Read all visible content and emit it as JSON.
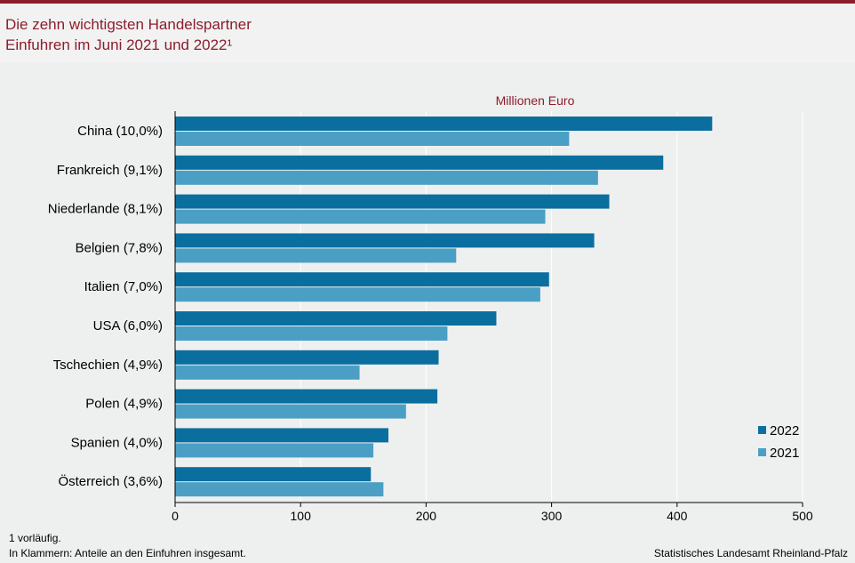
{
  "header": {
    "title_line1": "Die zehn wichtigsten Handelspartner",
    "title_line2": "Einfuhren im Juni 2021 und 2022¹"
  },
  "footer": {
    "note1": "1 vorläufig.",
    "note2": "In Klammern: Anteile an den Einfuhren  insgesamt.",
    "source": "Statistisches Landesamt Rheinland-Pfalz"
  },
  "colors": {
    "accent": "#8c1d2c",
    "series_2022": "#0a6f9f",
    "series_2021": "#4b9fc4"
  },
  "chart_data": {
    "type": "bar",
    "orientation": "horizontal",
    "unit_label": "Millionen  Euro",
    "categories": [
      "China (10,0%)",
      "Frankreich (9,1%)",
      "Niederlande (8,1%)",
      "Belgien (7,8%)",
      "Italien (7,0%)",
      "USA (6,0%)",
      "Tschechien (4,9%)",
      "Polen (4,9%)",
      "Spanien (4,0%)",
      "Österreich (3,6%)"
    ],
    "series": [
      {
        "name": "2022",
        "values": [
          428,
          389,
          346,
          334,
          298,
          256,
          210,
          209,
          170,
          156
        ]
      },
      {
        "name": "2021",
        "values": [
          314,
          337,
          295,
          224,
          291,
          217,
          147,
          184,
          158,
          166
        ]
      }
    ],
    "xlim": [
      0,
      500
    ],
    "xticks": [
      "0",
      "100",
      "200",
      "300",
      "400",
      "500"
    ],
    "grid": true,
    "legend_position": "bottom-right"
  }
}
